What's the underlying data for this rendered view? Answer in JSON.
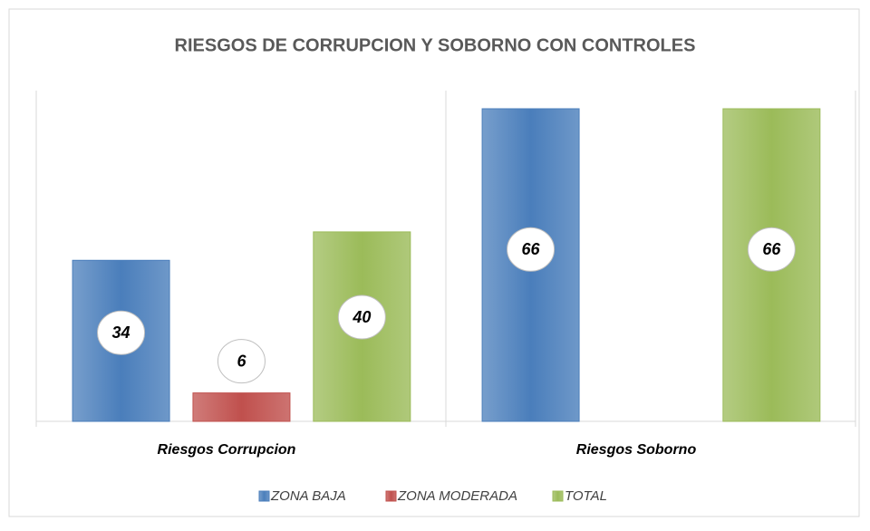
{
  "chart_data": {
    "type": "bar",
    "title": "RIESGOS DE CORRUPCION Y SOBORNO CON CONTROLES",
    "categories": [
      "Riesgos Corrupcion",
      "Riesgos Soborno"
    ],
    "series": [
      {
        "name": "ZONA BAJA",
        "color": "#4a7ebb",
        "values": [
          34,
          66
        ]
      },
      {
        "name": "ZONA MODERADA",
        "color": "#c0504d",
        "values": [
          6,
          null
        ]
      },
      {
        "name": "TOTAL",
        "color": "#9bbb59",
        "values": [
          40,
          66
        ]
      }
    ],
    "legend": "bottom"
  }
}
